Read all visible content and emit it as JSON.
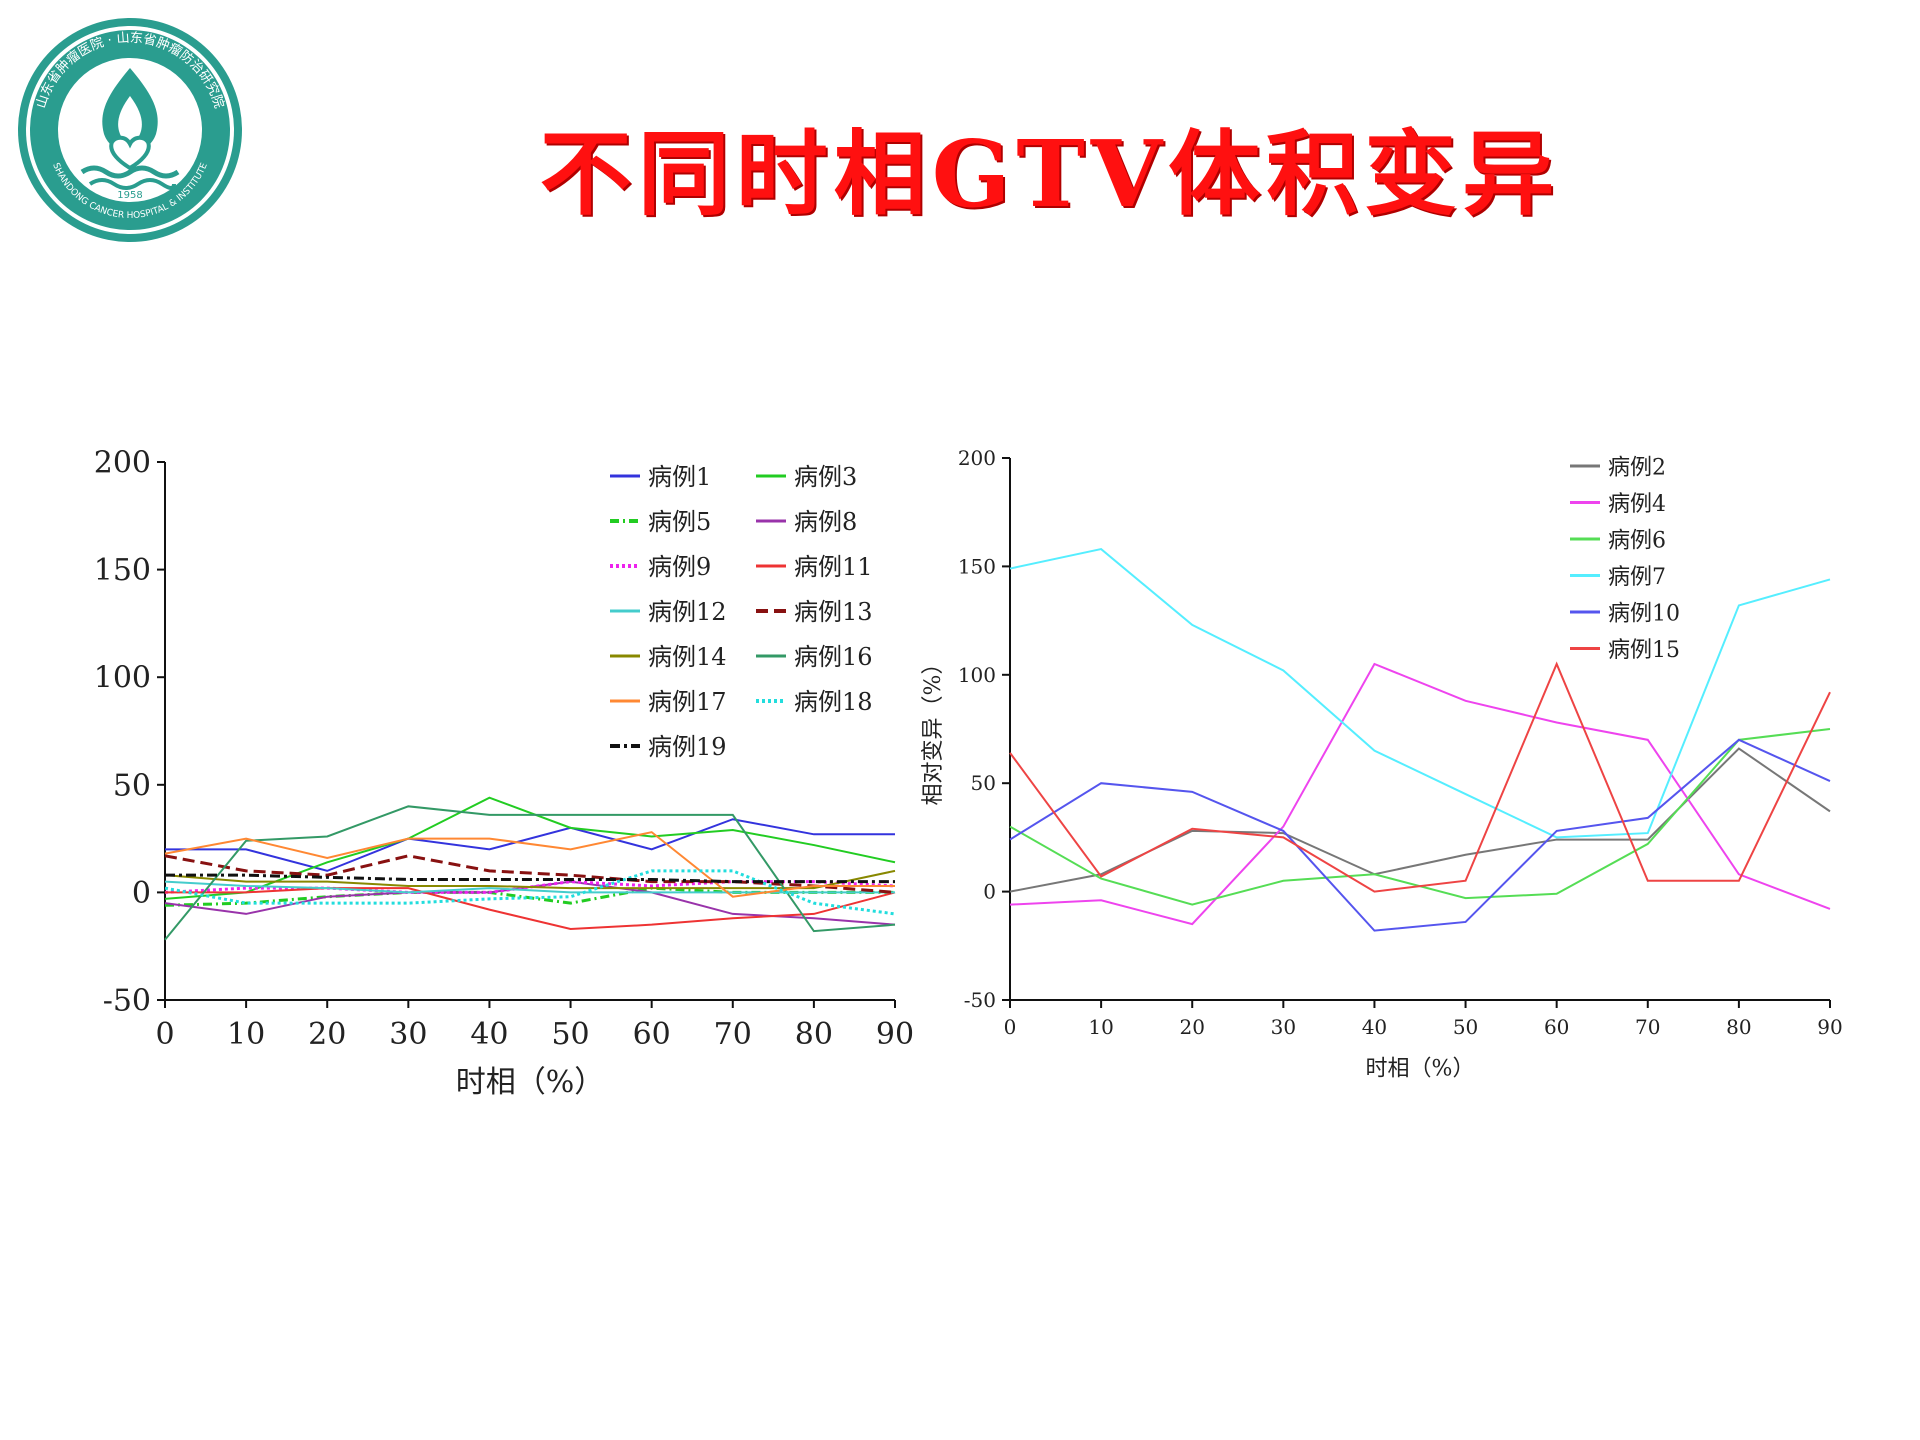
{
  "title": "不同时相GTV体积变异",
  "logo": {
    "icon": "hospital-emblem-icon",
    "ring_text": "山东省肿瘤医院 · 山东省肿瘤防治研究院",
    "english_text": "SHANDONG CANCER HOSPITAL & INSTITUTE",
    "year": "1958",
    "color": "#2a9d8f"
  },
  "chart_data": [
    {
      "type": "line",
      "title": "",
      "xlabel": "时相（%）",
      "ylabel": "",
      "x": [
        0,
        10,
        20,
        30,
        40,
        50,
        60,
        70,
        80,
        90
      ],
      "xlim": [
        0,
        90
      ],
      "ylim": [
        -50,
        200
      ],
      "yticks": [
        -50,
        0,
        50,
        100,
        150,
        200
      ],
      "grid": false,
      "legend": "top-right",
      "series": [
        {
          "name": "病例1",
          "color": "#3333dd",
          "dash": "",
          "values": [
            20,
            20,
            10,
            25,
            20,
            30,
            20,
            34,
            27,
            27
          ]
        },
        {
          "name": "病例3",
          "color": "#22cc22",
          "dash": "",
          "values": [
            -3,
            0,
            14,
            25,
            44,
            30,
            26,
            29,
            22,
            14
          ]
        },
        {
          "name": "病例5",
          "color": "#22cc22",
          "dash": "9 4 2 4",
          "values": [
            -6,
            -5,
            -2,
            0,
            0,
            -5,
            2,
            0,
            0,
            0
          ]
        },
        {
          "name": "病例8",
          "color": "#9933aa",
          "dash": "",
          "values": [
            -5,
            -10,
            -2,
            0,
            0,
            5,
            0,
            -10,
            -12,
            -15
          ]
        },
        {
          "name": "病例9",
          "color": "#ee22ee",
          "dash": "3 3",
          "values": [
            0,
            2,
            2,
            0,
            0,
            5,
            3,
            5,
            5,
            3
          ]
        },
        {
          "name": "病例11",
          "color": "#ee3333",
          "dash": "",
          "values": [
            0,
            0,
            2,
            2,
            -8,
            -17,
            -15,
            -12,
            -10,
            0
          ]
        },
        {
          "name": "病例12",
          "color": "#44cccc",
          "dash": "",
          "values": [
            5,
            3,
            2,
            0,
            2,
            0,
            0,
            0,
            0,
            0
          ]
        },
        {
          "name": "病例13",
          "color": "#881111",
          "dash": "12 6",
          "values": [
            17,
            10,
            8,
            17,
            10,
            8,
            5,
            5,
            3,
            0
          ]
        },
        {
          "name": "病例14",
          "color": "#888800",
          "dash": "",
          "values": [
            8,
            5,
            5,
            3,
            3,
            2,
            2,
            2,
            2,
            10
          ]
        },
        {
          "name": "病例16",
          "color": "#339966",
          "dash": "",
          "values": [
            -22,
            24,
            26,
            40,
            36,
            36,
            36,
            36,
            -18,
            -15
          ]
        },
        {
          "name": "病例17",
          "color": "#ff8833",
          "dash": "",
          "values": [
            18,
            25,
            16,
            25,
            25,
            20,
            28,
            -2,
            3,
            3
          ]
        },
        {
          "name": "病例18",
          "color": "#22dddd",
          "dash": "3 3",
          "values": [
            2,
            -5,
            -5,
            -5,
            -3,
            -2,
            10,
            10,
            -5,
            -10
          ]
        },
        {
          "name": "病例19",
          "color": "#111111",
          "dash": "10 4 3 4",
          "values": [
            8,
            8,
            7,
            6,
            6,
            6,
            6,
            5,
            5,
            5
          ]
        }
      ]
    },
    {
      "type": "line",
      "title": "",
      "xlabel": "时相（%）",
      "ylabel": "相对变异（%）",
      "x": [
        0,
        10,
        20,
        30,
        40,
        50,
        60,
        70,
        80,
        90
      ],
      "xlim": [
        0,
        90
      ],
      "ylim": [
        -50,
        200
      ],
      "yticks": [
        -50,
        0,
        50,
        100,
        150,
        200
      ],
      "grid": false,
      "legend": "top-right",
      "series": [
        {
          "name": "病例2",
          "color": "#777777",
          "dash": "",
          "values": [
            0,
            8,
            28,
            27,
            8,
            17,
            24,
            24,
            66,
            37
          ]
        },
        {
          "name": "病例4",
          "color": "#ee44ee",
          "dash": "",
          "values": [
            -6,
            -4,
            -15,
            30,
            105,
            88,
            78,
            70,
            8,
            -8
          ]
        },
        {
          "name": "病例6",
          "color": "#55dd55",
          "dash": "",
          "values": [
            30,
            6,
            -6,
            5,
            8,
            -3,
            -1,
            22,
            70,
            75
          ]
        },
        {
          "name": "病例7",
          "color": "#55eeff",
          "dash": "",
          "values": [
            149,
            158,
            123,
            102,
            65,
            45,
            25,
            27,
            132,
            144
          ]
        },
        {
          "name": "病例10",
          "color": "#5555ee",
          "dash": "",
          "values": [
            24,
            50,
            46,
            28,
            -18,
            -14,
            28,
            34,
            70,
            51
          ]
        },
        {
          "name": "病例15",
          "color": "#ee4444",
          "dash": "",
          "values": [
            64,
            7,
            29,
            25,
            0,
            5,
            105,
            5,
            5,
            92
          ]
        }
      ]
    }
  ]
}
